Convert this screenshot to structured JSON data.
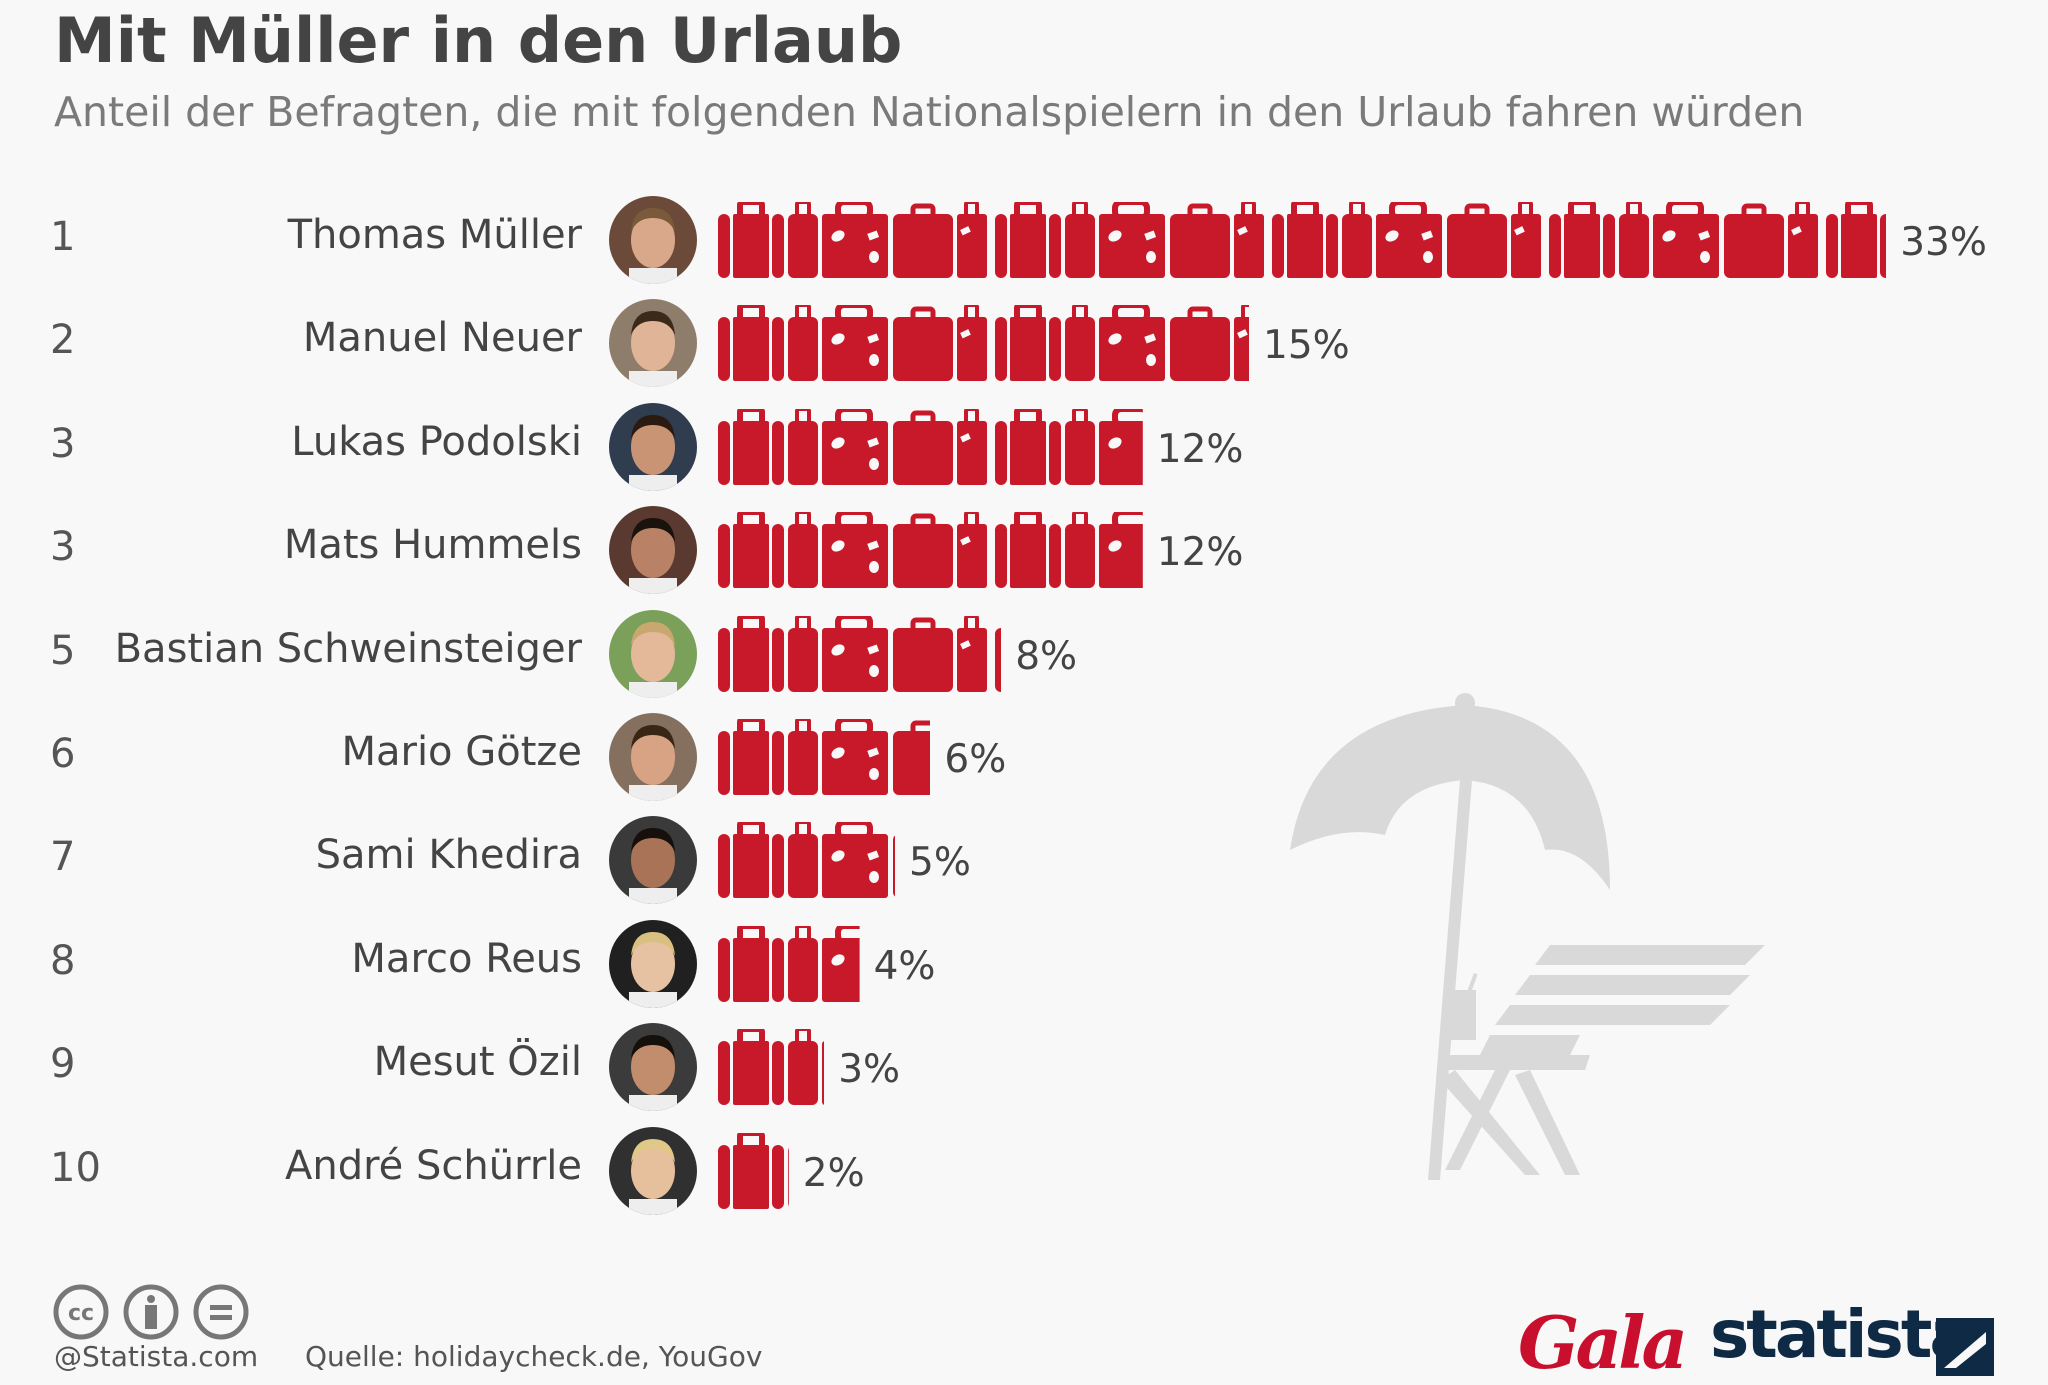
{
  "title": "Mit Müller in den Urlaub",
  "subtitle": "Anteil der Befragten, die mit folgenden Nationalspielern in den Urlaub fahren würden",
  "chart_data": {
    "type": "bar",
    "orientation": "horizontal",
    "title": "Mit Müller in den Urlaub",
    "subtitle": "Anteil der Befragten, die mit folgenden Nationalspielern in den Urlaub fahren würden",
    "unit": "%",
    "ranks": [
      "1",
      "2",
      "3",
      "3",
      "5",
      "6",
      "7",
      "8",
      "9",
      "10"
    ],
    "categories": [
      "Thomas Müller",
      "Manuel Neuer",
      "Lukas Podolski",
      "Mats Hummels",
      "Bastian Schweinsteiger",
      "Mario Götze",
      "Sami Khedira",
      "Marco Reus",
      "Mesut Özil",
      "André Schürrle"
    ],
    "values": [
      33,
      15,
      12,
      12,
      8,
      6,
      5,
      4,
      3,
      2
    ],
    "labels": [
      "33%",
      "15%",
      "12%",
      "12%",
      "8%",
      "6%",
      "5%",
      "4%",
      "3%",
      "2%"
    ],
    "bar_icon": "suitcase-icon",
    "bar_color": "#c8192a"
  },
  "footer": {
    "credit": "@Statista.com",
    "source": "Quelle: holidaycheck.de, YouGov",
    "license_icons": [
      "cc-icon",
      "by-icon",
      "nd-icon"
    ],
    "logo_gala": "Gala",
    "logo_statista": "statista"
  }
}
